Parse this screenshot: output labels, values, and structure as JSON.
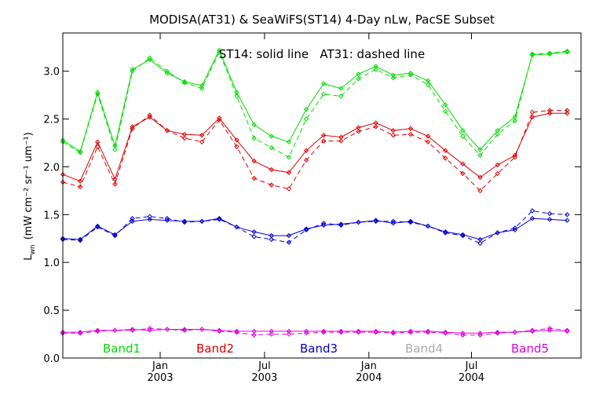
{
  "chart_data": {
    "type": "line",
    "title": "MODISA(AT31) & SeaWiFS(ST14) 4-Day nLw, PacSE Subset",
    "ylabel_main": "L",
    "ylabel_sub": "wn",
    "ylabel_units": "(mW cm⁻² sr⁻¹ um⁻¹)",
    "annotation": "ST14: solid line   AT31: dashed line",
    "ylim": [
      0.0,
      3.4
    ],
    "yticks": [
      "0.0",
      "0.5",
      "1.0",
      "1.5",
      "2.0",
      "2.5",
      "3.0"
    ],
    "xlim": [
      0,
      29.8
    ],
    "xticks": [
      {
        "month": "Jan",
        "year": "2003",
        "x": 5.6
      },
      {
        "month": "Jul",
        "year": "2003",
        "x": 11.6
      },
      {
        "month": "Jan",
        "year": "2004",
        "x": 17.6
      },
      {
        "month": "Jul",
        "year": "2004",
        "x": 23.5
      }
    ],
    "x": [
      0,
      1,
      2,
      3,
      4,
      5,
      6,
      7,
      8,
      9,
      10,
      11,
      12,
      13,
      14,
      15,
      16,
      17,
      18,
      19,
      20,
      21,
      22,
      23,
      24,
      25,
      26,
      27,
      28,
      29
    ],
    "series": [
      {
        "name": "Band1",
        "key": "band1",
        "color": "#00dd00",
        "solid": [
          2.28,
          2.16,
          2.78,
          2.22,
          3.02,
          3.12,
          2.98,
          2.89,
          2.85,
          3.22,
          2.78,
          2.44,
          2.32,
          2.26,
          2.6,
          2.87,
          2.82,
          2.97,
          3.05,
          2.96,
          2.98,
          2.9,
          2.65,
          2.38,
          2.18,
          2.38,
          2.52,
          3.17,
          3.18,
          3.2
        ],
        "dashed": [
          2.26,
          2.15,
          2.76,
          2.18,
          3.0,
          3.14,
          3.0,
          2.88,
          2.82,
          3.2,
          2.74,
          2.3,
          2.2,
          2.1,
          2.5,
          2.76,
          2.74,
          2.92,
          3.02,
          2.93,
          2.96,
          2.86,
          2.58,
          2.32,
          2.12,
          2.34,
          2.48,
          3.18,
          3.19,
          3.21
        ]
      },
      {
        "name": "Band2",
        "key": "band2",
        "color": "#dd0000",
        "solid": [
          1.92,
          1.85,
          2.26,
          1.87,
          2.42,
          2.52,
          2.38,
          2.34,
          2.33,
          2.51,
          2.28,
          2.06,
          1.97,
          1.94,
          2.17,
          2.33,
          2.31,
          2.41,
          2.46,
          2.38,
          2.4,
          2.32,
          2.17,
          2.03,
          1.89,
          2.02,
          2.12,
          2.52,
          2.56,
          2.56
        ],
        "dashed": [
          1.84,
          1.79,
          2.21,
          1.82,
          2.4,
          2.54,
          2.38,
          2.3,
          2.26,
          2.49,
          2.21,
          1.88,
          1.81,
          1.77,
          2.07,
          2.27,
          2.27,
          2.37,
          2.42,
          2.33,
          2.34,
          2.26,
          2.09,
          1.93,
          1.75,
          1.93,
          2.1,
          2.57,
          2.59,
          2.59
        ]
      },
      {
        "name": "Band3",
        "key": "band3",
        "color": "#0000cc",
        "solid": [
          1.25,
          1.24,
          1.38,
          1.29,
          1.43,
          1.45,
          1.44,
          1.43,
          1.43,
          1.46,
          1.37,
          1.32,
          1.28,
          1.28,
          1.35,
          1.39,
          1.4,
          1.42,
          1.44,
          1.41,
          1.43,
          1.38,
          1.32,
          1.29,
          1.24,
          1.31,
          1.34,
          1.46,
          1.45,
          1.44
        ],
        "dashed": [
          1.24,
          1.23,
          1.37,
          1.28,
          1.46,
          1.48,
          1.46,
          1.42,
          1.43,
          1.45,
          1.37,
          1.27,
          1.24,
          1.21,
          1.34,
          1.41,
          1.39,
          1.42,
          1.43,
          1.43,
          1.42,
          1.38,
          1.31,
          1.28,
          1.2,
          1.31,
          1.36,
          1.54,
          1.51,
          1.5
        ]
      },
      {
        "name": "Band4",
        "key": "band4",
        "color": "#aaaaaa",
        "solid": [],
        "dashed": []
      },
      {
        "name": "Band5",
        "key": "band5",
        "color": "#dd00dd",
        "solid": [
          0.27,
          0.27,
          0.29,
          0.29,
          0.3,
          0.29,
          0.3,
          0.3,
          0.3,
          0.29,
          0.28,
          0.28,
          0.28,
          0.28,
          0.28,
          0.28,
          0.28,
          0.28,
          0.28,
          0.27,
          0.28,
          0.28,
          0.27,
          0.26,
          0.26,
          0.27,
          0.27,
          0.28,
          0.29,
          0.28
        ],
        "dashed": [
          0.26,
          0.26,
          0.28,
          0.29,
          0.29,
          0.31,
          0.3,
          0.29,
          0.3,
          0.28,
          0.27,
          0.24,
          0.25,
          0.25,
          0.26,
          0.27,
          0.27,
          0.27,
          0.27,
          0.26,
          0.27,
          0.27,
          0.26,
          0.24,
          0.24,
          0.26,
          0.27,
          0.29,
          0.31,
          0.29
        ]
      }
    ],
    "grid": false,
    "legend": "bottom"
  }
}
